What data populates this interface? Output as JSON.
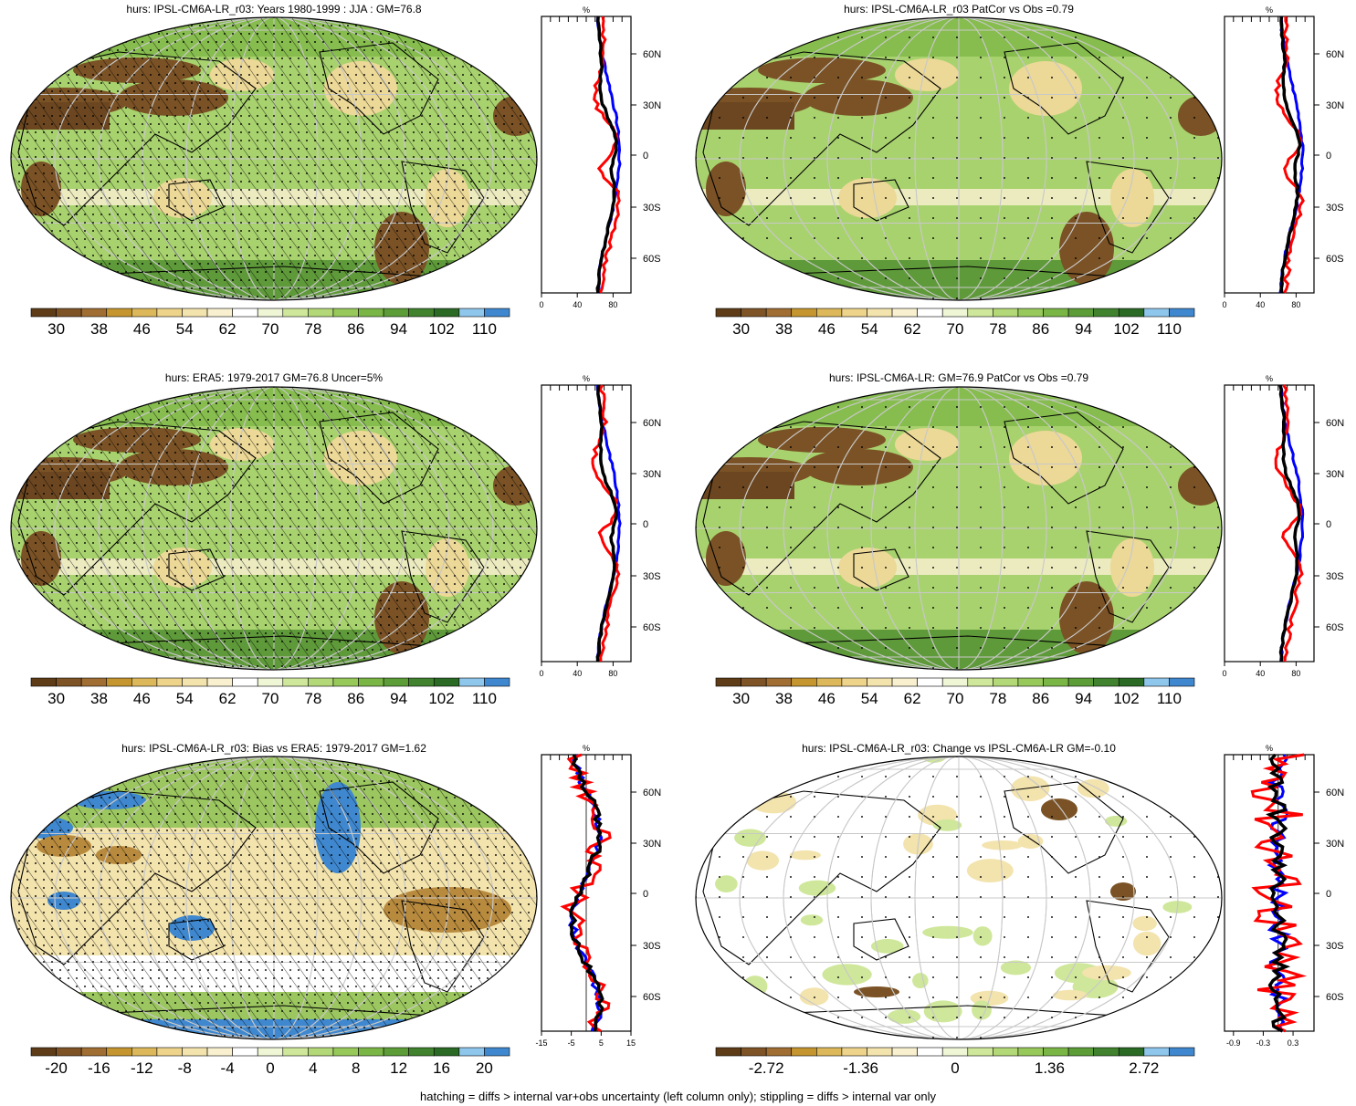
{
  "panels": [
    {
      "id": "p1",
      "title": "hurs: IPSL-CM6A-LR_r03: Years 1980-1999 : JJA : GM=76.8",
      "kind": "abs",
      "hatch": true,
      "stipple": "dense"
    },
    {
      "id": "p2",
      "title": "hurs: IPSL-CM6A-LR_r03 PatCor vs Obs =0.79",
      "kind": "abs",
      "hatch": false,
      "stipple": "sparse"
    },
    {
      "id": "p3",
      "title": "hurs: ERA5: 1979-2017 GM=76.8 Uncer=5%",
      "kind": "abs",
      "hatch": true,
      "stipple": "dense"
    },
    {
      "id": "p4",
      "title": "hurs: IPSL-CM6A-LR: GM=76.9 PatCor vs Obs =0.79",
      "kind": "abs",
      "hatch": false,
      "stipple": "sparse"
    },
    {
      "id": "p5",
      "title": "hurs: IPSL-CM6A-LR_r03: Bias vs ERA5: 1979-2017 GM=1.62",
      "kind": "bias",
      "hatch": true,
      "stipple": "dense"
    },
    {
      "id": "p6",
      "title": "hurs: IPSL-CM6A-LR_r03: Change vs IPSL-CM6A-LR GM=-0.10",
      "kind": "change",
      "hatch": false,
      "stipple": "sparse"
    }
  ],
  "colorbars": {
    "abs": {
      "labels": [
        "30",
        "38",
        "46",
        "54",
        "62",
        "70",
        "78",
        "86",
        "94",
        "102",
        "110"
      ],
      "colors": [
        "#5e3c18",
        "#7e5326",
        "#a06e32",
        "#c5962f",
        "#dcb85a",
        "#eed38b",
        "#f3e3ad",
        "#f8f0cf",
        "#ffffff",
        "#eef6d6",
        "#cfe79a",
        "#b3d877",
        "#97c95a",
        "#7ab646",
        "#5c9d38",
        "#40822d",
        "#2a6a25",
        "#8ec6ec",
        "#3f88cf"
      ]
    },
    "bias": {
      "labels": [
        "-20",
        "-16",
        "-12",
        "-8",
        "-4",
        "0",
        "4",
        "8",
        "12",
        "16",
        "20"
      ],
      "colors": [
        "#5e3c18",
        "#7e5326",
        "#a06e32",
        "#c5962f",
        "#dcb85a",
        "#eed38b",
        "#f3e3ad",
        "#f8f0cf",
        "#ffffff",
        "#eef6d6",
        "#cfe79a",
        "#b3d877",
        "#97c95a",
        "#7ab646",
        "#5c9d38",
        "#40822d",
        "#2a6a25",
        "#8ec6ec",
        "#3f88cf"
      ]
    },
    "change": {
      "labels": [
        "-2.72",
        "-1.36",
        "0",
        "1.36",
        "2.72"
      ],
      "colors": [
        "#5e3c18",
        "#7e5326",
        "#a06e32",
        "#c5962f",
        "#dcb85a",
        "#eed38b",
        "#f3e3ad",
        "#f8f0cf",
        "#ffffff",
        "#eef6d6",
        "#cfe79a",
        "#b3d877",
        "#97c95a",
        "#7ab646",
        "#5c9d38",
        "#40822d",
        "#2a6a25",
        "#8ec6ec",
        "#3f88cf"
      ]
    }
  },
  "profiles": {
    "unit": "%",
    "lat_labels": [
      "60N",
      "30N",
      "0",
      "30S",
      "60S"
    ],
    "xticks_abs": [
      "0",
      "40",
      "80"
    ],
    "xticks_bias": [
      "-15",
      "-5",
      "5",
      "15"
    ],
    "xticks_change": [
      "-0.9",
      "-0.3",
      "0.3"
    ],
    "series_colors": {
      "model": "#ff0000",
      "obs": "#0000ff",
      "mean": "#000000"
    }
  },
  "footer": "hatching = diffs > internal var+obs uncertainty (left column only); stippling = diffs > internal var only"
}
